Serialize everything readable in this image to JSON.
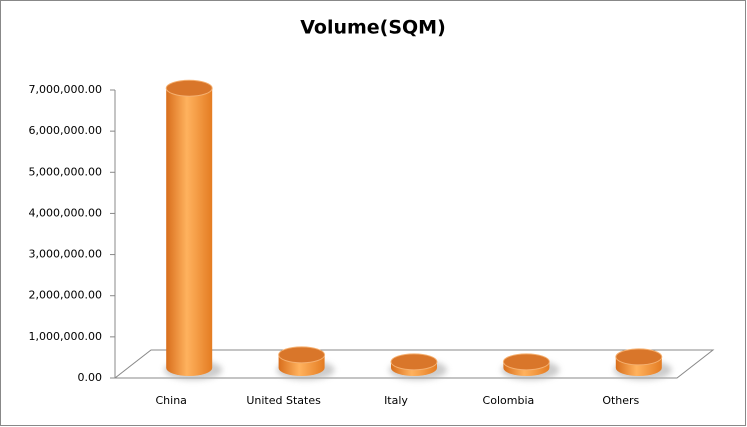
{
  "chart_data": {
    "type": "bar3d",
    "title": "Volume(SQM)",
    "categories": [
      "China",
      "United States",
      "Italy",
      "Colombia",
      "Others"
    ],
    "values": [
      6800000,
      320000,
      150000,
      150000,
      270000
    ],
    "color": "#f0903a",
    "ylim": [
      0,
      7000000
    ],
    "yticks": [
      {
        "value": 0,
        "label": "0.00"
      },
      {
        "value": 1000000,
        "label": "1,000,000.00"
      },
      {
        "value": 2000000,
        "label": "2,000,000.00"
      },
      {
        "value": 3000000,
        "label": "3,000,000.00"
      },
      {
        "value": 4000000,
        "label": "4,000,000.00"
      },
      {
        "value": 5000000,
        "label": "5,000,000.00"
      },
      {
        "value": 6000000,
        "label": "6,000,000.00"
      },
      {
        "value": 7000000,
        "label": "7,000,000.00"
      }
    ],
    "grid": false
  }
}
